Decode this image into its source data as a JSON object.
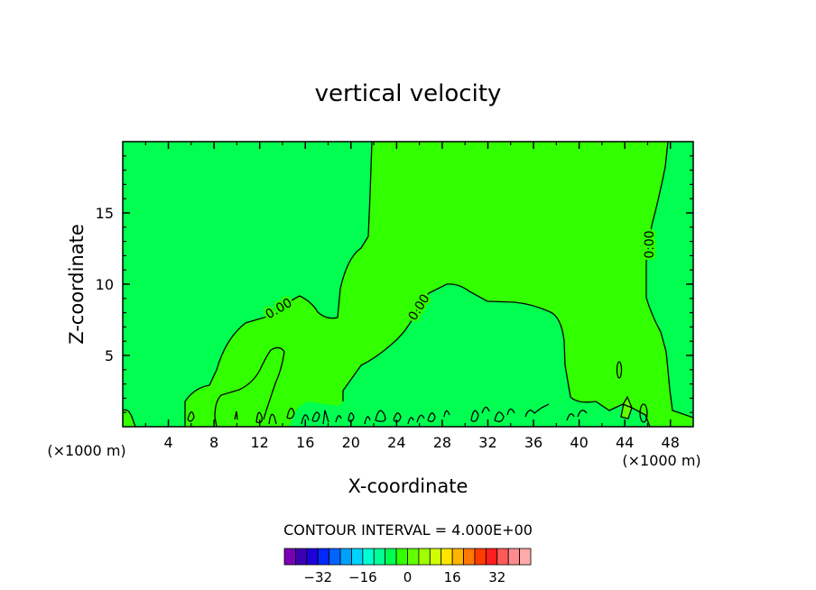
{
  "chart_data": {
    "type": "contour",
    "title": "vertical velocity",
    "xlabel": "X-coordinate",
    "ylabel": "Z-coordinate",
    "x_unit_left": "(×1000 m)",
    "x_unit_right": "(×1000 m)",
    "xlim": [
      0,
      50
    ],
    "ylim": [
      0,
      20
    ],
    "x_ticks": [
      4,
      8,
      12,
      16,
      20,
      24,
      28,
      32,
      36,
      40,
      44,
      48
    ],
    "y_ticks": [
      5,
      10,
      15
    ],
    "contour_interval_text": "CONTOUR INTERVAL = 4.000E+00",
    "contour_labels": [
      "0.00",
      "0.00",
      "0.00"
    ],
    "colorbar": {
      "colors": [
        "#7a00b4",
        "#3c00b4",
        "#1e00dc",
        "#0028ff",
        "#0064ff",
        "#00a0ff",
        "#00d2ff",
        "#00ffd2",
        "#00ff96",
        "#00ff50",
        "#32ff00",
        "#64ff00",
        "#a0ff00",
        "#d2ff00",
        "#ffe600",
        "#ffb400",
        "#ff7800",
        "#ff3c00",
        "#ff1e1e",
        "#ff5a5a",
        "#ff8c8c",
        "#ffaaaa"
      ],
      "tick_labels": [
        "-32",
        "-16",
        "0",
        "16",
        "32"
      ]
    },
    "field_colors": {
      "negative": "#00ff50",
      "positive": "#32ff00",
      "small_patch": "#64ff00"
    }
  }
}
